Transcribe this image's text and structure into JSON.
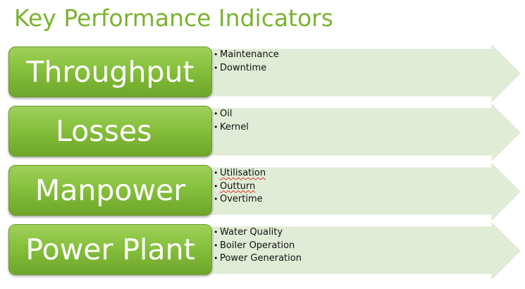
{
  "title": "Key Performance Indicators",
  "colors": {
    "accent": "#7ab32e",
    "box_fill": "#86c03c",
    "arrow_fill": "#e1ecd6"
  },
  "rows": [
    {
      "label": "Throughput",
      "items": [
        "Maintenance",
        "Downtime"
      ]
    },
    {
      "label": "Losses",
      "items": [
        "Oil",
        "Kernel"
      ]
    },
    {
      "label": "Manpower",
      "items": [
        "Utilisation",
        "Outturn",
        "Overtime"
      ]
    },
    {
      "label": "Power Plant",
      "items": [
        "Water Quality",
        "Boiler Operation",
        "Power Generation"
      ]
    }
  ]
}
